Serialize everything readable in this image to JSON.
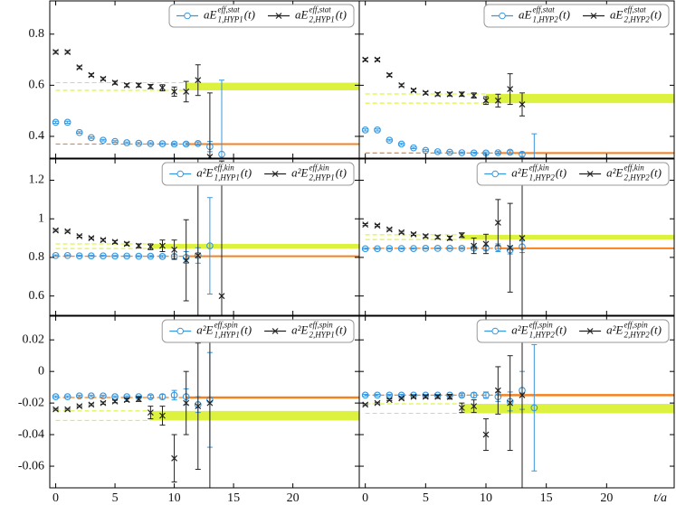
{
  "chart_data": [
    {
      "type": "errorbar",
      "xlim": [
        -0.5,
        25.6
      ],
      "ylim": [
        0.315,
        0.93
      ],
      "xticks": [
        0,
        5,
        10,
        15,
        20
      ],
      "yticks": [
        0.4,
        0.6,
        0.8
      ],
      "show_xtick_labels": false,
      "show_ytick_labels": true,
      "x": [
        0,
        1,
        2,
        3,
        4,
        5,
        6,
        7,
        8,
        9,
        10,
        11,
        12,
        13,
        14
      ],
      "series": [
        {
          "name": {
            "base": "aE",
            "sup": "eff,stat",
            "sub": "1,HYP1",
            "tail": "(t)"
          },
          "color": "#3b97dc",
          "marker": "circle",
          "fit_color": "#f5811f",
          "values": [
            0.455,
            0.455,
            0.415,
            0.395,
            0.385,
            0.38,
            0.375,
            0.373,
            0.372,
            0.371,
            0.37,
            0.37,
            0.372,
            0.36,
            0.33
          ],
          "errors": [
            0.004,
            0.004,
            0.003,
            0.003,
            0.003,
            0.003,
            0.003,
            0.003,
            0.003,
            0.003,
            0.004,
            0.005,
            0.006,
            0.02,
            0.29
          ],
          "fit": {
            "value": 0.37,
            "error": 0.003,
            "start": 11
          }
        },
        {
          "name": {
            "base": "aE",
            "sup": "eff,stat",
            "sub": "2,HYP1",
            "tail": "(t)"
          },
          "color": "#222222",
          "marker": "cross",
          "fit_color": "#d6f01c",
          "values": [
            0.73,
            0.73,
            0.67,
            0.64,
            0.625,
            0.61,
            0.6,
            0.6,
            0.595,
            0.59,
            0.575,
            0.575,
            0.62,
            0.32,
            null
          ],
          "errors": [
            0.005,
            0.005,
            0.005,
            0.005,
            0.005,
            0.006,
            0.006,
            0.007,
            0.008,
            0.012,
            0.018,
            0.04,
            0.06,
            0.25,
            null
          ],
          "fit": {
            "value": 0.595,
            "error": 0.015,
            "start": 11
          }
        }
      ]
    },
    {
      "type": "errorbar",
      "xlim": [
        -0.5,
        25.6
      ],
      "ylim": [
        0.315,
        0.93
      ],
      "xticks": [
        0,
        5,
        10,
        15,
        20
      ],
      "yticks": [
        0.4,
        0.6,
        0.8
      ],
      "show_xtick_labels": false,
      "show_ytick_labels": false,
      "x": [
        0,
        1,
        2,
        3,
        4,
        5,
        6,
        7,
        8,
        9,
        10,
        11,
        12,
        13,
        14
      ],
      "series": [
        {
          "name": {
            "base": "aE",
            "sup": "eff,stat",
            "sub": "1,HYP2",
            "tail": "(t)"
          },
          "color": "#3b97dc",
          "marker": "circle",
          "fit_color": "#f5811f",
          "values": [
            0.425,
            0.425,
            0.385,
            0.37,
            0.355,
            0.345,
            0.34,
            0.338,
            0.336,
            0.335,
            0.335,
            0.336,
            0.338,
            0.33,
            0.29
          ],
          "errors": [
            0.004,
            0.004,
            0.003,
            0.003,
            0.003,
            0.003,
            0.003,
            0.003,
            0.003,
            0.003,
            0.004,
            0.005,
            0.006,
            0.008,
            0.12
          ],
          "fit": {
            "value": 0.335,
            "error": 0.003,
            "start": 11
          }
        },
        {
          "name": {
            "base": "aE",
            "sup": "eff,stat",
            "sub": "2,HYP2",
            "tail": "(t)"
          },
          "color": "#222222",
          "marker": "cross",
          "fit_color": "#d6f01c",
          "values": [
            0.7,
            0.7,
            0.64,
            0.6,
            0.58,
            0.57,
            0.565,
            0.565,
            0.565,
            0.56,
            0.54,
            0.54,
            0.585,
            0.525,
            null
          ],
          "errors": [
            0.005,
            0.005,
            0.005,
            0.005,
            0.005,
            0.005,
            0.006,
            0.007,
            0.008,
            0.01,
            0.015,
            0.025,
            0.06,
            0.045,
            null
          ],
          "fit": {
            "value": 0.548,
            "error": 0.018,
            "start": 10
          }
        }
      ]
    },
    {
      "type": "errorbar",
      "xlim": [
        -0.5,
        25.6
      ],
      "ylim": [
        0.5,
        1.31
      ],
      "xticks": [
        0,
        5,
        10,
        15,
        20
      ],
      "yticks": [
        0.6,
        0.8,
        1,
        1.2
      ],
      "show_xtick_labels": false,
      "show_ytick_labels": true,
      "x": [
        0,
        1,
        2,
        3,
        4,
        5,
        6,
        7,
        8,
        9,
        10,
        11,
        12,
        13,
        14
      ],
      "series": [
        {
          "name": {
            "base": "a²E",
            "sup": "eff,kin",
            "sub": "1,HYP1",
            "tail": "(t)"
          },
          "color": "#3b97dc",
          "marker": "circle",
          "fit_color": "#f5811f",
          "values": [
            0.81,
            0.81,
            0.808,
            0.808,
            0.808,
            0.807,
            0.807,
            0.806,
            0.806,
            0.805,
            0.805,
            0.8,
            0.81,
            0.86,
            null
          ],
          "errors": [
            0.003,
            0.003,
            0.003,
            0.003,
            0.003,
            0.003,
            0.003,
            0.003,
            0.004,
            0.005,
            0.01,
            0.03,
            0.04,
            0.25,
            null
          ],
          "fit": {
            "value": 0.806,
            "error": 0.003,
            "start": 11
          }
        },
        {
          "name": {
            "base": "a²E",
            "sup": "eff,kin",
            "sub": "2,HYP1",
            "tail": "(t)"
          },
          "color": "#222222",
          "marker": "cross",
          "fit_color": "#d6f01c",
          "values": [
            0.94,
            0.935,
            0.91,
            0.9,
            0.89,
            0.88,
            0.87,
            0.86,
            0.855,
            0.86,
            0.84,
            0.785,
            0.81,
            null,
            0.6
          ],
          "errors": [
            0.005,
            0.005,
            0.005,
            0.005,
            0.006,
            0.007,
            0.008,
            0.01,
            0.015,
            0.03,
            0.05,
            0.21,
            0.6,
            null,
            0.7
          ],
          "fit": {
            "value": 0.858,
            "error": 0.012,
            "start": 8
          }
        }
      ]
    },
    {
      "type": "errorbar",
      "xlim": [
        -0.5,
        25.6
      ],
      "ylim": [
        0.5,
        1.31
      ],
      "xticks": [
        0,
        5,
        10,
        15,
        20
      ],
      "yticks": [
        0.6,
        0.8,
        1,
        1.2
      ],
      "show_xtick_labels": false,
      "show_ytick_labels": false,
      "x": [
        0,
        1,
        2,
        3,
        4,
        5,
        6,
        7,
        8,
        9,
        10,
        11,
        12,
        13,
        14
      ],
      "series": [
        {
          "name": {
            "base": "a²E",
            "sup": "eff,kin",
            "sub": "1,HYP2",
            "tail": "(t)"
          },
          "color": "#3b97dc",
          "marker": "circle",
          "fit_color": "#f5811f",
          "values": [
            0.845,
            0.845,
            0.846,
            0.846,
            0.846,
            0.847,
            0.847,
            0.847,
            0.847,
            0.848,
            0.848,
            0.85,
            0.838,
            0.855,
            null
          ],
          "errors": [
            0.003,
            0.003,
            0.003,
            0.003,
            0.003,
            0.003,
            0.003,
            0.003,
            0.004,
            0.005,
            0.01,
            0.02,
            0.02,
            0.03,
            null
          ],
          "fit": {
            "value": 0.847,
            "error": 0.003,
            "start": 11
          }
        },
        {
          "name": {
            "base": "a²E",
            "sup": "eff,kin",
            "sub": "2,HYP2",
            "tail": "(t)"
          },
          "color": "#222222",
          "marker": "cross",
          "fit_color": "#d6f01c",
          "values": [
            0.97,
            0.965,
            0.945,
            0.93,
            0.92,
            0.91,
            0.905,
            0.9,
            0.915,
            0.86,
            0.87,
            0.98,
            0.85,
            0.9,
            null
          ],
          "errors": [
            0.005,
            0.005,
            0.005,
            0.005,
            0.006,
            0.007,
            0.008,
            0.01,
            0.012,
            0.04,
            0.05,
            0.12,
            0.23,
            0.9,
            null
          ],
          "fit": {
            "value": 0.905,
            "error": 0.012,
            "start": 8
          }
        }
      ]
    },
    {
      "type": "errorbar",
      "xlim": [
        -0.5,
        25.6
      ],
      "ylim": [
        -0.0737,
        0.035
      ],
      "xticks": [
        0,
        5,
        10,
        15,
        20
      ],
      "yticks": [
        -0.06,
        -0.04,
        -0.02,
        0,
        0.02
      ],
      "show_xtick_labels": true,
      "show_ytick_labels": true,
      "x": [
        0,
        1,
        2,
        3,
        4,
        5,
        6,
        7,
        8,
        9,
        10,
        11,
        12,
        13,
        14
      ],
      "series": [
        {
          "name": {
            "base": "a²E",
            "sup": "eff,spin",
            "sub": "1,HYP1",
            "tail": "(t)"
          },
          "color": "#3b97dc",
          "marker": "circle",
          "fit_color": "#f5811f",
          "values": [
            -0.016,
            -0.016,
            -0.0155,
            -0.0155,
            -0.0155,
            -0.016,
            -0.016,
            -0.016,
            -0.016,
            -0.016,
            -0.015,
            -0.016,
            -0.021,
            -0.018,
            null
          ],
          "errors": [
            0.0005,
            0.0005,
            0.0005,
            0.0005,
            0.0005,
            0.0005,
            0.0005,
            0.0005,
            0.001,
            0.0015,
            0.003,
            0.005,
            0.005,
            0.03,
            null
          ],
          "fit": {
            "value": -0.0165,
            "error": 0.0007,
            "start": 11
          }
        },
        {
          "name": {
            "base": "a²E",
            "sup": "eff,spin",
            "sub": "2,HYP1",
            "tail": "(t)"
          },
          "color": "#222222",
          "marker": "cross",
          "fit_color": "#d6f01c",
          "values": [
            -0.024,
            -0.024,
            -0.022,
            -0.021,
            -0.02,
            -0.019,
            -0.018,
            -0.0175,
            -0.026,
            -0.028,
            -0.055,
            -0.02,
            -0.022,
            -0.02,
            null
          ],
          "errors": [
            0.0005,
            0.0005,
            0.0005,
            0.0006,
            0.0007,
            0.0008,
            0.001,
            0.0015,
            0.004,
            0.006,
            0.015,
            0.02,
            0.04,
            0.06,
            null
          ],
          "fit": {
            "value": -0.028,
            "error": 0.003,
            "start": 8
          }
        }
      ]
    },
    {
      "type": "errorbar",
      "xlim": [
        -0.5,
        25.6
      ],
      "ylim": [
        -0.0737,
        0.035
      ],
      "xticks": [
        0,
        5,
        10,
        15,
        20
      ],
      "yticks": [
        -0.06,
        -0.04,
        -0.02,
        0,
        0.02
      ],
      "show_xtick_labels": true,
      "show_ytick_labels": false,
      "xlabel": "t/a",
      "x": [
        0,
        1,
        2,
        3,
        4,
        5,
        6,
        7,
        8,
        9,
        10,
        11,
        12,
        13,
        14
      ],
      "series": [
        {
          "name": {
            "base": "a²E",
            "sup": "eff,spin",
            "sub": "1,HYP2",
            "tail": "(t)"
          },
          "color": "#3b97dc",
          "marker": "circle",
          "fit_color": "#f5811f",
          "values": [
            -0.015,
            -0.015,
            -0.015,
            -0.015,
            -0.015,
            -0.015,
            -0.015,
            -0.015,
            -0.015,
            -0.015,
            -0.015,
            -0.016,
            -0.019,
            -0.012,
            -0.023
          ],
          "errors": [
            0.0005,
            0.0005,
            0.0005,
            0.0005,
            0.0005,
            0.0005,
            0.0005,
            0.0005,
            0.001,
            0.0015,
            0.002,
            0.003,
            0.006,
            0.012,
            0.04
          ],
          "fit": {
            "value": -0.015,
            "error": 0.0007,
            "start": 11
          }
        },
        {
          "name": {
            "base": "a²E",
            "sup": "eff,spin",
            "sub": "2,HYP2",
            "tail": "(t)"
          },
          "color": "#222222",
          "marker": "cross",
          "fit_color": "#d6f01c",
          "values": [
            -0.021,
            -0.02,
            -0.018,
            -0.017,
            -0.016,
            -0.016,
            -0.016,
            -0.016,
            -0.023,
            -0.022,
            -0.04,
            -0.012,
            -0.02,
            -0.015,
            null
          ],
          "errors": [
            0.0005,
            0.0005,
            0.0005,
            0.0006,
            0.0007,
            0.0008,
            0.001,
            0.0015,
            0.003,
            0.004,
            0.01,
            0.015,
            0.03,
            0.06,
            null
          ],
          "fit": {
            "value": -0.0235,
            "error": 0.003,
            "start": 8
          }
        }
      ]
    }
  ]
}
